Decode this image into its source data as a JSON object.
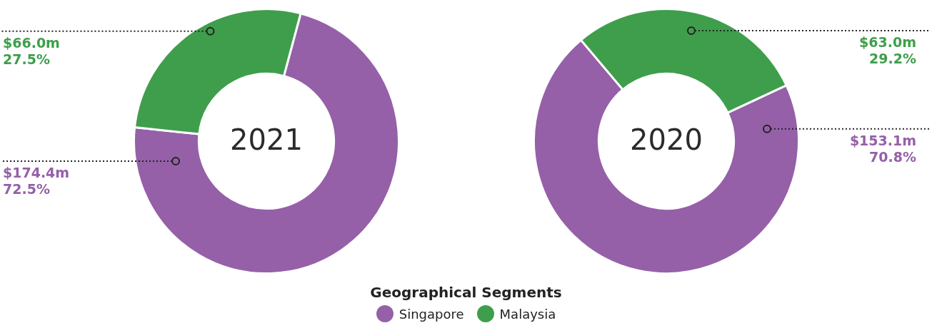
{
  "chart_data": [
    {
      "type": "donut",
      "title": "2021",
      "categories": [
        "Singapore",
        "Malaysia"
      ],
      "values": [
        72.5,
        27.5
      ],
      "colors": [
        "#9560a8",
        "#3f9e4c"
      ],
      "value_labels": [
        "72.5%",
        "27.5%"
      ],
      "annotations": [
        "$174.4m",
        "$66.0m"
      ],
      "legend": "bottom",
      "legend_title": "Geographical Segments"
    },
    {
      "type": "donut",
      "title": "2020",
      "categories": [
        null,
        null
      ],
      "values": [
        70.8,
        29.2
      ],
      "colors": [
        "#9560a8",
        "#3f9e4c"
      ],
      "value_labels": [
        "70.8%",
        "29.2%"
      ],
      "annotations": [
        "$153.1m",
        "$63.0m"
      ]
    }
  ]
}
